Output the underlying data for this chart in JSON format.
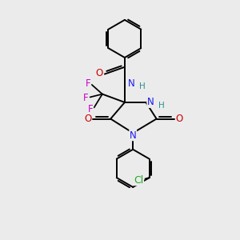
{
  "background_color": "#ebebeb",
  "fig_size": [
    3.0,
    3.0
  ],
  "dpi": 100,
  "atom_colors": {
    "C": "#000000",
    "N": "#1a1aee",
    "O": "#cc0000",
    "F": "#cc00cc",
    "Cl": "#22aa22",
    "H": "#2a9090"
  },
  "bond_color": "#000000",
  "bond_width": 1.4,
  "font_size_atom": 8.5,
  "font_size_h": 7.5
}
